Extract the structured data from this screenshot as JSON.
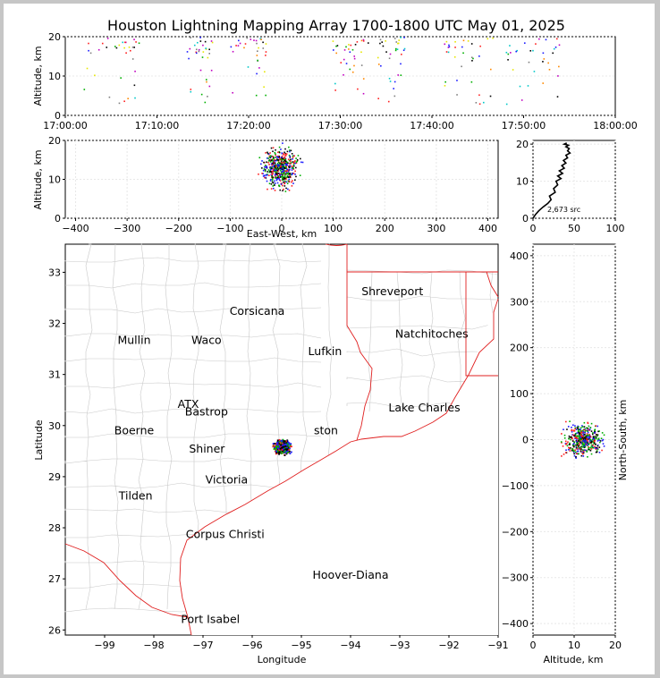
{
  "title": "Houston Lightning Mapping Array 1700-1800 UTC May 01, 2025",
  "colors": {
    "background": "#c6c6c6",
    "panel": "#ffffff",
    "state_border": "#e02020",
    "county_border": "#c8c8c8",
    "profile": "#000000"
  },
  "chart_data": [
    {
      "id": "altitude-time",
      "type": "scatter",
      "xlabel": "",
      "ylabel": "Altitude, km",
      "xticks": [
        "17:00:00",
        "17:10:00",
        "17:20:00",
        "17:30:00",
        "17:40:00",
        "17:50:00",
        "18:00:00"
      ],
      "xlim_minutes": [
        0,
        60
      ],
      "ylim": [
        0,
        20
      ],
      "yticks": [
        0,
        10,
        20
      ],
      "clusters_minutes": [
        [
          2,
          8
        ],
        [
          13,
          16
        ],
        [
          18,
          22
        ],
        [
          29,
          33
        ],
        [
          34,
          37
        ],
        [
          41,
          47
        ],
        [
          48,
          54
        ]
      ]
    },
    {
      "id": "ew-altitude",
      "type": "scatter",
      "xlabel": "East-West, km",
      "ylabel": "Altitude, km",
      "xlim": [
        -420,
        420
      ],
      "xticks": [
        -400,
        -300,
        -200,
        -100,
        0,
        100,
        200,
        300,
        400
      ],
      "ylim": [
        0,
        20
      ],
      "yticks": [
        0,
        10,
        20
      ],
      "center_ew_km": -5
    },
    {
      "id": "source-histogram",
      "type": "line",
      "xlim": [
        0,
        100
      ],
      "xticks": [
        0,
        50,
        100
      ],
      "ylim": [
        0,
        21
      ],
      "yticks": [
        0,
        10,
        20
      ],
      "annotation": "2,673 src",
      "x": [
        0,
        3,
        7,
        12,
        18,
        22,
        20,
        27,
        25,
        30,
        28,
        34,
        30,
        36,
        32,
        38,
        35,
        40,
        37,
        42,
        40,
        45,
        42,
        44,
        40,
        43,
        38,
        41
      ],
      "y": [
        0,
        1,
        2,
        3,
        4,
        5,
        6,
        7,
        8,
        9,
        10,
        10.7,
        11.4,
        12.1,
        12.8,
        13.5,
        14.2,
        14.9,
        15.6,
        16.3,
        17,
        17.6,
        18.2,
        18.8,
        19.3,
        19.7,
        20,
        20.3
      ]
    },
    {
      "id": "map",
      "type": "scatter",
      "xlabel": "Longitude",
      "ylabel": "Latitude",
      "xlim": [
        -99.8,
        -91
      ],
      "ylim": [
        25.9,
        33.55
      ],
      "xticks": [
        -99,
        -98,
        -97,
        -96,
        -95,
        -94,
        -93,
        -92,
        -91
      ],
      "yticks": [
        26,
        27,
        28,
        29,
        30,
        31,
        32,
        33
      ],
      "storm_center": [
        -95.4,
        29.6
      ]
    },
    {
      "id": "ns-altitude",
      "type": "scatter",
      "xlabel": "Altitude, km",
      "ylabel": "North-South, km",
      "xlim": [
        0,
        20
      ],
      "xticks": [
        0,
        10,
        20
      ],
      "ylim": [
        -425,
        425
      ],
      "yticks": [
        -400,
        -300,
        -200,
        -100,
        0,
        100,
        200,
        300,
        400
      ]
    }
  ],
  "map_labels": [
    {
      "text": "Shreveport",
      "lon": -93.15,
      "lat": 32.55,
      "color": "#000000"
    },
    {
      "text": "Corsicana",
      "lon": -95.9,
      "lat": 32.17,
      "color": "#000000"
    },
    {
      "text": "Natchitoches",
      "lon": -92.35,
      "lat": 31.72,
      "color": "#000000"
    },
    {
      "text": "Mullin",
      "lon": -98.4,
      "lat": 31.6,
      "color": "#ff8c40"
    },
    {
      "text": "Waco",
      "lon": -96.93,
      "lat": 31.6,
      "color": "#000000"
    },
    {
      "text": "Lufkin",
      "lon": -94.52,
      "lat": 31.38,
      "color": "#000000"
    },
    {
      "text": "Lake Charles",
      "lon": -92.5,
      "lat": 30.28,
      "color": "#000000"
    },
    {
      "text": "Bastrop",
      "lon": -96.93,
      "lat": 30.2,
      "color": "#000000"
    },
    {
      "text": "ATX",
      "lon": -97.3,
      "lat": 30.35,
      "color": "#ff8c40"
    },
    {
      "text": "Boerne",
      "lon": -98.4,
      "lat": 29.83,
      "color": "#000000"
    },
    {
      "text": "Shiner",
      "lon": -96.92,
      "lat": 29.47,
      "color": "#000000"
    },
    {
      "text": "Victoria",
      "lon": -96.52,
      "lat": 28.87,
      "color": "#000000"
    },
    {
      "text": "Tilden",
      "lon": -98.37,
      "lat": 28.55,
      "color": "#000000"
    },
    {
      "text": "Corpus Christi",
      "lon": -96.55,
      "lat": 27.8,
      "color": "#000000"
    },
    {
      "text": "Hoover-Diana",
      "lon": -94.0,
      "lat": 27.0,
      "color": "#1a1aff"
    },
    {
      "text": "Port Isabel",
      "lon": -96.85,
      "lat": 26.14,
      "color": "#000000"
    },
    {
      "text": "ston",
      "lon": -94.5,
      "lat": 29.83,
      "color": "#ff9900"
    }
  ]
}
